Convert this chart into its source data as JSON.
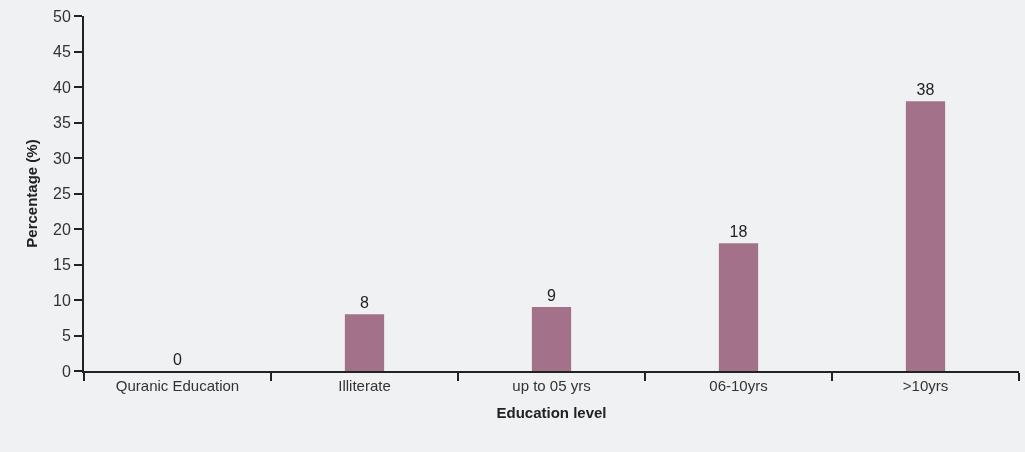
{
  "chart_data": {
    "type": "bar",
    "xlabel": "Education level",
    "ylabel": "Percentage (%)",
    "categories": [
      "Quranic Education",
      "Illiterate",
      "up to 05 yrs",
      "06-10yrs",
      ">10yrs"
    ],
    "values": [
      0,
      8,
      9,
      18,
      38
    ],
    "color": "#a3728a",
    "ylim": [
      0,
      50
    ],
    "yticks": [
      0,
      5,
      10,
      15,
      20,
      25,
      30,
      35,
      40,
      45,
      50
    ],
    "data_labels": true
  }
}
